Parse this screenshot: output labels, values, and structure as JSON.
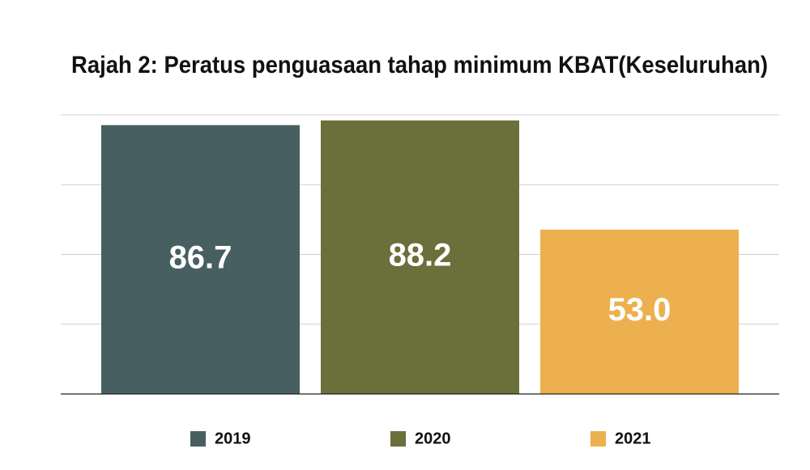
{
  "chart_data": {
    "type": "bar",
    "title": "Rajah 2: Peratus penguasaan tahap minimum KBAT(Keseluruhan)",
    "categories": [
      null
    ],
    "series": [
      {
        "name": "2019",
        "color": "#475f60",
        "values": [
          86.7
        ],
        "value_labels": [
          "86.7"
        ]
      },
      {
        "name": "2020",
        "color": "#6b6f3a",
        "values": [
          88.2
        ],
        "value_labels": [
          "88.2"
        ]
      },
      {
        "name": "2021",
        "color": "#ecb04f",
        "values": [
          53.0
        ],
        "value_labels": [
          "53.0"
        ]
      }
    ],
    "ylim": [
      0,
      90
    ],
    "yticks": [
      0,
      22.5,
      45,
      67.5,
      90
    ],
    "grid": true
  }
}
